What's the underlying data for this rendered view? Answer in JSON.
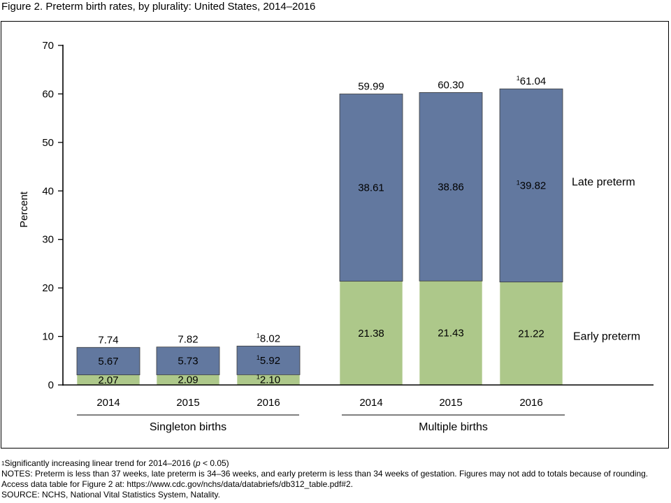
{
  "figure_title": "Figure 2. Preterm birth rates, by plurality: United States, 2014–2016",
  "colors": {
    "early": "#adc88a",
    "late": "#62789f",
    "axis": "#000000"
  },
  "footnotes": {
    "marker": "1",
    "significance_text": "Significantly increasing linear trend for 2014–2016 (",
    "significance_p": "p",
    "significance_tail": " < 0.05)",
    "notes": "NOTES: Preterm is less than 37 weeks, late preterm is 34–36 weeks, and early preterm is less than 34 weeks of gestation. Figures may not add to totals because of rounding. Access data table for Figure 2 at: https://www.cdc.gov/nchs/data/databriefs/db312_table.pdf#2.",
    "source": "SOURCE: NCHS, National Vital Statistics System, Natality."
  },
  "chart_data": {
    "type": "bar",
    "stacked": true,
    "ylabel": "Percent",
    "ylim": [
      0,
      70
    ],
    "yticks": [
      0,
      10,
      20,
      30,
      40,
      50,
      60,
      70
    ],
    "groups": [
      {
        "name": "Singleton births",
        "categories": [
          "2014",
          "2015",
          "2016"
        ]
      },
      {
        "name": "Multiple births",
        "categories": [
          "2014",
          "2015",
          "2016"
        ]
      }
    ],
    "series": [
      {
        "name": "Early preterm",
        "color": "#adc88a",
        "values": [
          2.07,
          2.09,
          2.1,
          21.38,
          21.43,
          21.22
        ],
        "labels": [
          "2.07",
          "2.09",
          "2.10",
          "21.38",
          "21.43",
          "21.22"
        ],
        "flagged": [
          false,
          false,
          true,
          false,
          false,
          false
        ]
      },
      {
        "name": "Late preterm",
        "color": "#62789f",
        "values": [
          5.67,
          5.73,
          5.92,
          38.61,
          38.86,
          39.82
        ],
        "labels": [
          "5.67",
          "5.73",
          "5.92",
          "38.61",
          "38.86",
          "39.82"
        ],
        "flagged": [
          false,
          false,
          true,
          false,
          false,
          true
        ]
      }
    ],
    "totals": [
      7.74,
      7.82,
      8.02,
      59.99,
      60.3,
      61.04
    ],
    "total_labels": [
      "7.74",
      "7.82",
      "8.02",
      "59.99",
      "60.30",
      "61.04"
    ],
    "totals_flagged": [
      false,
      false,
      true,
      false,
      false,
      true
    ],
    "legend": "right, inline beside last bar"
  }
}
